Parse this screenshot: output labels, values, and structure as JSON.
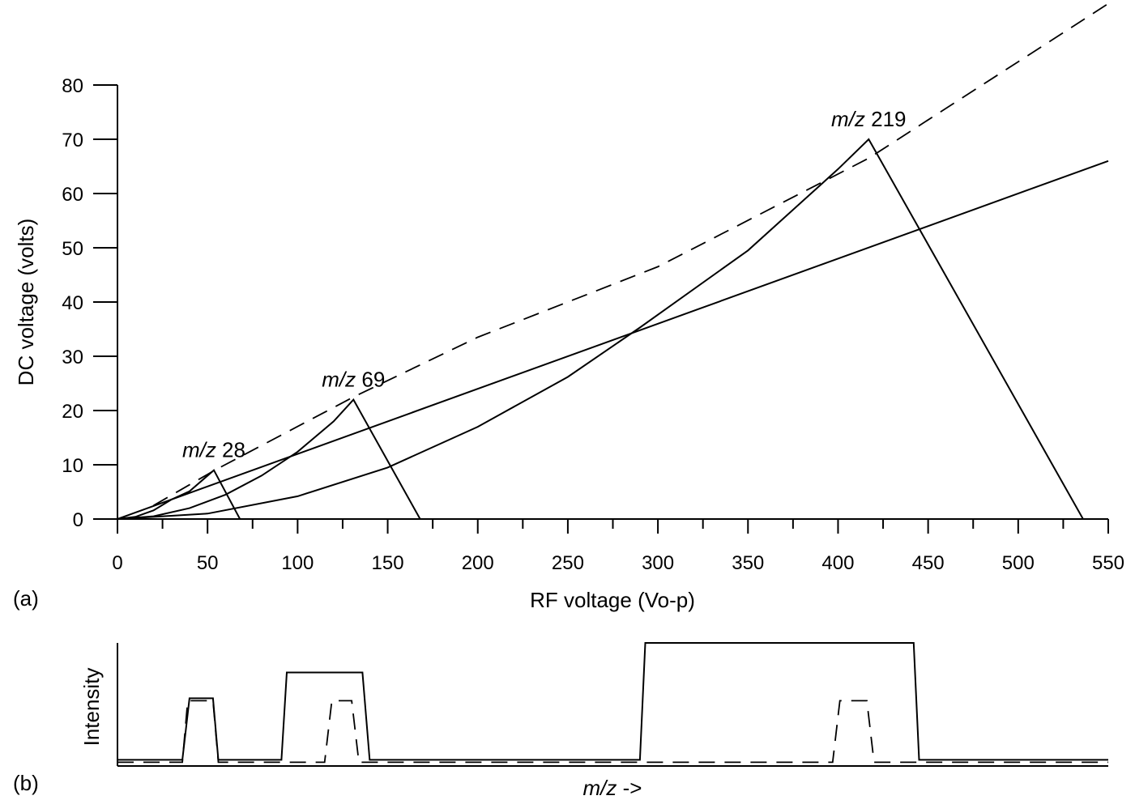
{
  "chart_data": [
    {
      "panel_label": "(a)",
      "type": "line",
      "xlabel": "RF voltage (Vo-p)",
      "ylabel": "DC voltage (volts)",
      "xlim": [
        0,
        550
      ],
      "ylim": [
        0,
        80
      ],
      "x_ticks": [
        0,
        50,
        100,
        150,
        200,
        250,
        300,
        350,
        400,
        450,
        500,
        550
      ],
      "y_ticks": [
        0,
        10,
        20,
        30,
        40,
        50,
        60,
        70,
        80
      ],
      "series": [
        {
          "name": "m/z 28",
          "style": "solid",
          "points": [
            [
              0,
              0
            ],
            [
              10,
              0.4
            ],
            [
              20,
              1.6
            ],
            [
              30,
              3.6
            ],
            [
              40,
              5.1
            ],
            [
              53.5,
              9
            ],
            [
              68,
              0
            ]
          ]
        },
        {
          "name": "m/z 69",
          "style": "solid",
          "points": [
            [
              0,
              0
            ],
            [
              20,
              0.5
            ],
            [
              40,
              2.0
            ],
            [
              60,
              4.5
            ],
            [
              80,
              8.0
            ],
            [
              100,
              12.4
            ],
            [
              120,
              18.0
            ],
            [
              131,
              22
            ],
            [
              168,
              0
            ]
          ]
        },
        {
          "name": "m/z 219",
          "style": "solid",
          "points": [
            [
              0,
              0
            ],
            [
              50,
              1.0
            ],
            [
              100,
              4.2
            ],
            [
              150,
              9.5
            ],
            [
              200,
              17.0
            ],
            [
              250,
              26.2
            ],
            [
              290,
              35.3
            ],
            [
              350,
              49.5
            ],
            [
              400,
              64.5
            ],
            [
              417,
              70
            ],
            [
              536,
              0
            ]
          ]
        },
        {
          "style": "solid",
          "points": [
            [
              0,
              0
            ],
            [
              550,
              66
            ]
          ]
        },
        {
          "style": "dashed",
          "points": [
            [
              20,
              2.5
            ],
            [
              54,
              9
            ],
            [
              131,
              22.5
            ],
            [
              200,
              33.5
            ],
            [
              300,
              46.5
            ],
            [
              417,
              66.5
            ],
            [
              550,
              95
            ]
          ]
        }
      ],
      "annotations": [
        {
          "prefix": "m/z",
          "value": "28",
          "x": 53.5,
          "y": 9
        },
        {
          "prefix": "m/z",
          "value": "69",
          "x": 131,
          "y": 22
        },
        {
          "prefix": "m/z",
          "value": "219",
          "x": 417,
          "y": 70
        }
      ]
    },
    {
      "panel_label": "(b)",
      "type": "line",
      "xlabel_prefix": "m/z",
      "xlabel_suffix": " ->",
      "ylabel": "Intensity",
      "xlim": [
        0,
        550
      ],
      "ylim": [
        0,
        1
      ],
      "series": [
        {
          "style": "solid",
          "points": [
            [
              0,
              0.05
            ],
            [
              36,
              0.05
            ],
            [
              40,
              0.55
            ],
            [
              53,
              0.55
            ],
            [
              56,
              0.05
            ],
            [
              91,
              0.05
            ],
            [
              94,
              0.76
            ],
            [
              136,
              0.76
            ],
            [
              140,
              0.05
            ],
            [
              290,
              0.05
            ],
            [
              293,
              1.0
            ],
            [
              442,
              1.0
            ],
            [
              445,
              0.05
            ],
            [
              550,
              0.05
            ]
          ]
        },
        {
          "style": "dashed",
          "points": [
            [
              0,
              0.03
            ],
            [
              36,
              0.03
            ],
            [
              39,
              0.53
            ],
            [
              53,
              0.53
            ],
            [
              56,
              0.03
            ],
            [
              115,
              0.03
            ],
            [
              119,
              0.53
            ],
            [
              130,
              0.53
            ],
            [
              134,
              0.03
            ],
            [
              397,
              0.03
            ],
            [
              401,
              0.53
            ],
            [
              416,
              0.53
            ],
            [
              420,
              0.03
            ],
            [
              550,
              0.03
            ]
          ]
        }
      ]
    }
  ]
}
